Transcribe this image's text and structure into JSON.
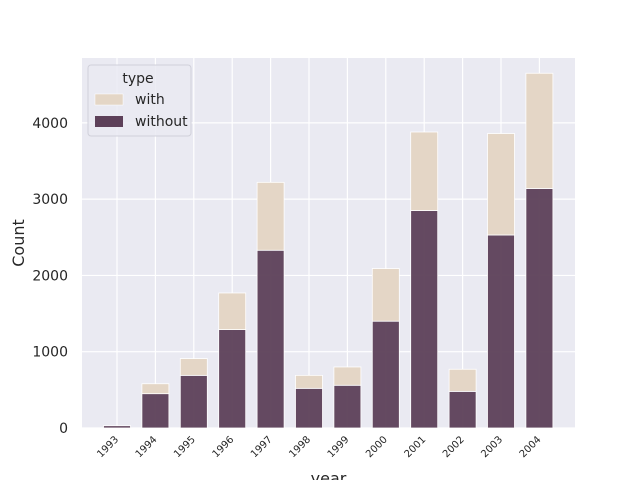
{
  "chart_data": {
    "type": "bar",
    "stacked": true,
    "title": "",
    "xlabel": "year",
    "ylabel": "Count",
    "categories": [
      "1993",
      "1994",
      "1995",
      "1996",
      "1997",
      "1998",
      "1999",
      "2000",
      "2001",
      "2002",
      "2003",
      "2004"
    ],
    "series": [
      {
        "name": "without",
        "values": [
          30,
          450,
          690,
          1290,
          2330,
          520,
          560,
          1400,
          2850,
          480,
          2530,
          3140
        ]
      },
      {
        "name": "with",
        "values": [
          0,
          130,
          220,
          480,
          890,
          170,
          240,
          690,
          1030,
          290,
          1330,
          1510
        ]
      }
    ],
    "yticks": [
      0,
      1000,
      2000,
      3000,
      4000
    ],
    "ylim": [
      0,
      4850
    ],
    "grid": true,
    "legend": {
      "title": "type",
      "entries": [
        "with",
        "without"
      ],
      "placement": "top-left"
    },
    "colors": {
      "with": "#e4d6c6",
      "without": "#5d4059",
      "background": "#eaeaf2",
      "grid": "#ffffff"
    }
  }
}
